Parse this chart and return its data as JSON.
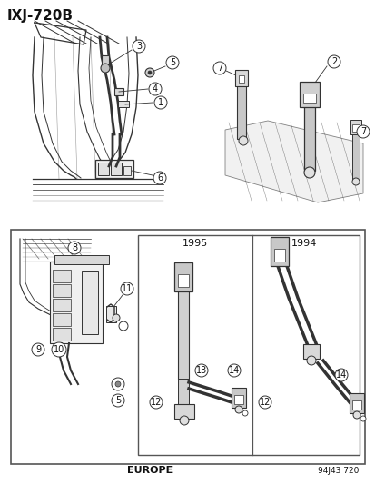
{
  "diagram_id": "IXJ-720B",
  "footer_left": "EUROPE",
  "footer_right": "94J43 720",
  "bg_color": "#ffffff",
  "lc": "#333333",
  "tc": "#111111",
  "title_fontsize": 11,
  "callout_fs": 7,
  "year_1995": "1995",
  "year_1994": "1994"
}
